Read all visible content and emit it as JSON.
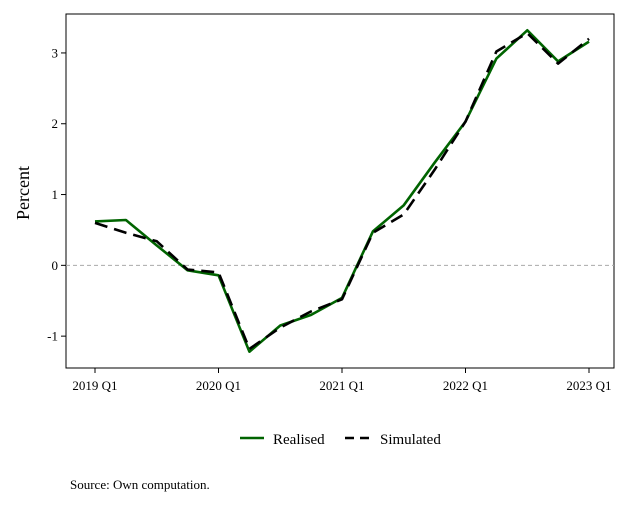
{
  "chart_data": {
    "type": "line",
    "title": "",
    "xlabel": "",
    "ylabel": "Percent",
    "x": [
      "2019 Q1",
      "2019 Q2",
      "2019 Q3",
      "2019 Q4",
      "2020 Q1",
      "2020 Q2",
      "2020 Q3",
      "2020 Q4",
      "2021 Q1",
      "2021 Q2",
      "2021 Q3",
      "2021 Q4",
      "2022 Q1",
      "2022 Q2",
      "2022 Q3",
      "2022 Q4",
      "2023 Q1"
    ],
    "x_ticks": [
      "2019 Q1",
      "2020 Q1",
      "2021 Q1",
      "2022 Q1",
      "2023 Q1"
    ],
    "y_ticks": [
      -1,
      0,
      1,
      2,
      3
    ],
    "ylim": [
      -1.45,
      3.55
    ],
    "reference_line": {
      "y": 0,
      "style": "dashed",
      "color": "#aaaaaa"
    },
    "grid": false,
    "legend_position": "bottom",
    "series": [
      {
        "name": "Realised",
        "color": "#006400",
        "style": "solid",
        "values": [
          0.62,
          0.64,
          0.28,
          -0.07,
          -0.14,
          -1.22,
          -0.85,
          -0.7,
          -0.46,
          0.48,
          0.85,
          1.45,
          2.03,
          2.92,
          3.32,
          2.88,
          3.16
        ]
      },
      {
        "name": "Simulated",
        "color": "#000000",
        "style": "dashed",
        "values": [
          0.6,
          0.46,
          0.34,
          -0.06,
          -0.1,
          -1.18,
          -0.88,
          -0.65,
          -0.48,
          0.46,
          0.72,
          1.35,
          2.03,
          3.02,
          3.28,
          2.85,
          3.2
        ]
      }
    ]
  },
  "legend": {
    "realised_label": "Realised",
    "simulated_label": "Simulated"
  },
  "source_note": "Source: Own computation."
}
